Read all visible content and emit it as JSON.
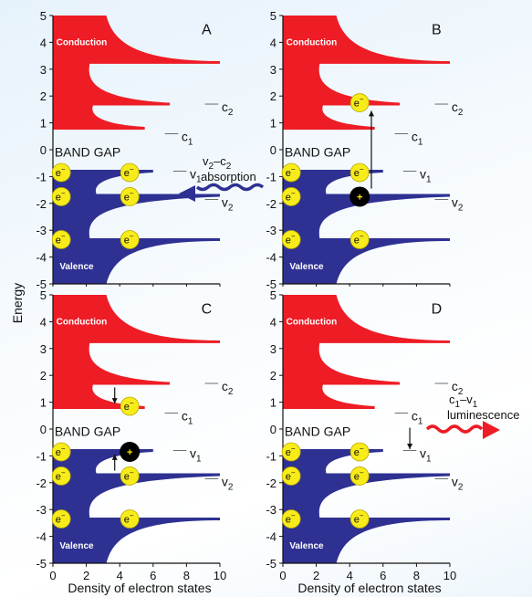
{
  "figure": {
    "y_axis_title": "Energy",
    "x_axis_title": "Density of electron states",
    "y_ticks": [
      5,
      4,
      3,
      2,
      1,
      0,
      -1,
      -2,
      -3,
      -4,
      -5
    ],
    "x_ticks": [
      0,
      2,
      4,
      6,
      8,
      10
    ],
    "colors": {
      "conduction": "#ee1c25",
      "valence": "#2e3192",
      "electron": "#f7ec1a",
      "hole": "#000000",
      "absorption_wave": "#2e3192",
      "luminescence_wave": "#ee1c25"
    }
  },
  "panels": [
    {
      "label": "A",
      "conduction_label": "Conduction",
      "valence_label": "Valence",
      "gap_label": "BAND GAP",
      "levels": [
        {
          "letter": "c",
          "sub": "2"
        },
        {
          "letter": "c",
          "sub": "1"
        },
        {
          "letter": "v",
          "sub": "1"
        },
        {
          "letter": "v",
          "sub": "2"
        }
      ],
      "electron_symbol": "e",
      "electron_sup": "−"
    },
    {
      "label": "B",
      "conduction_label": "Conduction",
      "valence_label": "Valence",
      "gap_label": "BAND GAP",
      "levels": [
        {
          "letter": "c",
          "sub": "2"
        },
        {
          "letter": "c",
          "sub": "1"
        },
        {
          "letter": "v",
          "sub": "1"
        },
        {
          "letter": "v",
          "sub": "2"
        }
      ],
      "electron_symbol": "e",
      "electron_sup": "−",
      "hole_symbol": "+"
    },
    {
      "label": "C",
      "conduction_label": "Conduction",
      "valence_label": "Valence",
      "gap_label": "BAND GAP",
      "levels": [
        {
          "letter": "c",
          "sub": "2"
        },
        {
          "letter": "c",
          "sub": "1"
        },
        {
          "letter": "v",
          "sub": "1"
        },
        {
          "letter": "v",
          "sub": "2"
        }
      ],
      "electron_symbol": "e",
      "electron_sup": "−",
      "hole_symbol": "+"
    },
    {
      "label": "D",
      "conduction_label": "Conduction",
      "valence_label": "Valence",
      "gap_label": "BAND GAP",
      "levels": [
        {
          "letter": "c",
          "sub": "2"
        },
        {
          "letter": "c",
          "sub": "1"
        },
        {
          "letter": "v",
          "sub": "1"
        },
        {
          "letter": "v",
          "sub": "2"
        }
      ],
      "electron_symbol": "e",
      "electron_sup": "−"
    }
  ],
  "absorption": {
    "top_letter": "v",
    "top_sub": "2",
    "dash": "–",
    "top_letter2": "c",
    "top_sub2": "2",
    "bottom": "absorption"
  },
  "luminescence": {
    "top_letter": "c",
    "top_sub": "1",
    "dash": "–",
    "top_letter2": "v",
    "top_sub2": "1",
    "bottom": "luminescence"
  }
}
